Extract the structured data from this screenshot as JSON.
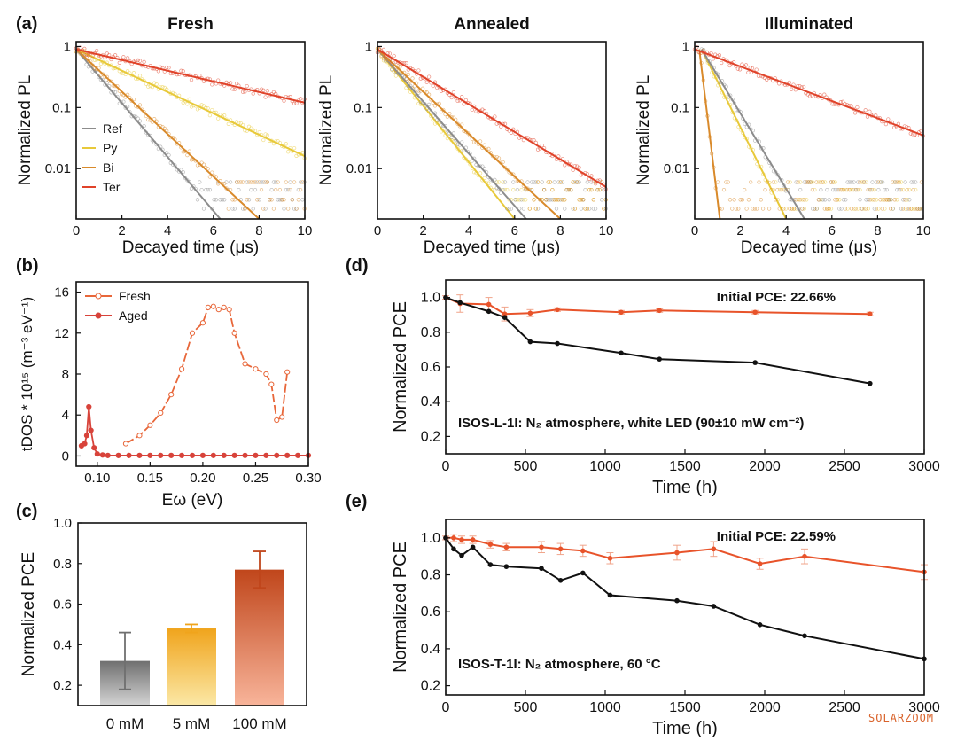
{
  "colors": {
    "Ref": "#8c8c8c",
    "Py": "#e8c93a",
    "Bi": "#d98a2b",
    "Ter": "#e0432a",
    "Fresh": "#e8673a",
    "Aged": "#d8433a",
    "black": "#111111"
  },
  "watermark": "SOLARZOOM",
  "chart_data": [
    {
      "panel": "(a)",
      "title": "Fresh",
      "type": "scatter",
      "log_y": true,
      "xlabel": "Decayed time (μs)",
      "ylabel": "Normalized PL",
      "xlim": [
        0,
        10
      ],
      "ylim": [
        0.0015,
        1.2
      ],
      "xticks": [
        "0",
        "2",
        "4",
        "6",
        "8",
        "10"
      ],
      "yticks": [
        "1",
        "0.1",
        "0.01"
      ],
      "legend": [
        "Ref",
        "Py",
        "Bi",
        "Ter"
      ],
      "series": [
        {
          "name": "Ref",
          "x0": 0,
          "y0": 0.9,
          "x1": 6.3,
          "y1": 0.0015
        },
        {
          "name": "Py",
          "x0": 0,
          "y0": 0.9,
          "x1": 10,
          "y1": 0.016
        },
        {
          "name": "Bi",
          "x0": 0,
          "y0": 0.9,
          "x1": 8,
          "y1": 0.0015
        },
        {
          "name": "Ter",
          "x0": 0,
          "y0": 0.9,
          "x1": 10,
          "y1": 0.12
        }
      ]
    },
    {
      "panel": "",
      "title": "Annealed",
      "type": "scatter",
      "log_y": true,
      "xlabel": "Decayed time (μs)",
      "ylabel": "Normalized PL",
      "xlim": [
        0,
        10
      ],
      "ylim": [
        0.0015,
        1.2
      ],
      "xticks": [
        "0",
        "2",
        "4",
        "6",
        "8",
        "10"
      ],
      "yticks": [
        "1",
        "0.1",
        "0.01"
      ],
      "series": [
        {
          "name": "Ref",
          "x0": 0,
          "y0": 0.9,
          "x1": 6.5,
          "y1": 0.0015
        },
        {
          "name": "Py",
          "x0": 0,
          "y0": 0.9,
          "x1": 6,
          "y1": 0.0015
        },
        {
          "name": "Bi",
          "x0": 0,
          "y0": 0.9,
          "x1": 8,
          "y1": 0.0015
        },
        {
          "name": "Ter",
          "x0": 0,
          "y0": 0.9,
          "x1": 10,
          "y1": 0.005
        }
      ]
    },
    {
      "panel": "",
      "title": "Illuminated",
      "type": "scatter",
      "log_y": true,
      "xlabel": "Decayed time (μs)",
      "ylabel": "Normalized PL",
      "xlim": [
        0,
        10
      ],
      "ylim": [
        0.0015,
        1.2
      ],
      "xticks": [
        "0",
        "2",
        "4",
        "6",
        "8",
        "10"
      ],
      "yticks": [
        "1",
        "0.1",
        "0.01"
      ],
      "series": [
        {
          "name": "Ref",
          "x0": 0.3,
          "y0": 0.9,
          "x1": 4.8,
          "y1": 0.0015
        },
        {
          "name": "Py",
          "x0": 0.3,
          "y0": 0.9,
          "x1": 4,
          "y1": 0.0015
        },
        {
          "name": "Bi",
          "x0": 0.2,
          "y0": 0.9,
          "x1": 1.1,
          "y1": 0.0015
        },
        {
          "name": "Ter",
          "x0": 0,
          "y0": 0.9,
          "x1": 10,
          "y1": 0.035
        }
      ]
    },
    {
      "panel": "(b)",
      "type": "line",
      "xlabel": "Eω (eV)",
      "ylabel": "tDOS * 10¹⁵ (m⁻³ eV⁻¹)",
      "xlim": [
        0.08,
        0.3
      ],
      "ylim": [
        -1,
        17
      ],
      "xticks": [
        "0.10",
        "0.15",
        "0.20",
        "0.25",
        "0.30"
      ],
      "yticks": [
        "0",
        "4",
        "8",
        "12",
        "16"
      ],
      "series": [
        {
          "name": "Fresh",
          "x": [
            0.127,
            0.14,
            0.15,
            0.16,
            0.17,
            0.18,
            0.19,
            0.2,
            0.205,
            0.21,
            0.215,
            0.22,
            0.225,
            0.23,
            0.24,
            0.25,
            0.26,
            0.265,
            0.27,
            0.275,
            0.28
          ],
          "y": [
            1.2,
            2.0,
            3.0,
            4.2,
            6.0,
            8.5,
            12.0,
            13.0,
            14.5,
            14.6,
            14.3,
            14.5,
            14.3,
            12.0,
            9.0,
            8.5,
            8.0,
            7.0,
            3.5,
            3.8,
            8.2
          ]
        },
        {
          "name": "Aged",
          "x": [
            0.085,
            0.088,
            0.09,
            0.092,
            0.094,
            0.097,
            0.1,
            0.105,
            0.11,
            0.12,
            0.13,
            0.14,
            0.15,
            0.16,
            0.17,
            0.18,
            0.19,
            0.2,
            0.21,
            0.22,
            0.23,
            0.24,
            0.25,
            0.26,
            0.27,
            0.28,
            0.29,
            0.3
          ],
          "y": [
            1.0,
            1.2,
            2.0,
            4.8,
            2.5,
            0.8,
            0.2,
            0.1,
            0.05,
            0.05,
            0.05,
            0.05,
            0.05,
            0.05,
            0.05,
            0.05,
            0.05,
            0.05,
            0.05,
            0.05,
            0.05,
            0.05,
            0.05,
            0.05,
            0.05,
            0.05,
            0.05,
            0.05
          ]
        }
      ]
    },
    {
      "panel": "(c)",
      "type": "bar",
      "categories": [
        "0 mM",
        "5 mM",
        "100 mM"
      ],
      "values": [
        0.32,
        0.48,
        0.77
      ],
      "errors": [
        0.14,
        0.02,
        0.09
      ],
      "ylabel": "Normalized PCE",
      "ylim": [
        0.1,
        1.0
      ],
      "yticks": [
        "0.2",
        "0.4",
        "0.6",
        "0.8",
        "1.0"
      ],
      "bar_colors": [
        [
          "#6f6f6f",
          "#d4d4d4"
        ],
        [
          "#f0a41c",
          "#fbe8a6"
        ],
        [
          "#c0461b",
          "#f8b49a"
        ]
      ]
    },
    {
      "panel": "(d)",
      "type": "line",
      "xlabel": "Time (h)",
      "ylabel": "Normalized PCE",
      "xlim": [
        0,
        3000
      ],
      "ylim": [
        0.1,
        1.1
      ],
      "xticks": [
        "0",
        "500",
        "1000",
        "1500",
        "2000",
        "2500",
        "3000"
      ],
      "yticks": [
        "0.2",
        "0.4",
        "0.6",
        "0.8",
        "1.0"
      ],
      "annotation": "Initial PCE: 22.66%",
      "condition": "ISOS-L-1I: N₂ atmosphere, white LED (90±10 mW cm⁻²)",
      "series": [
        {
          "color": "orange",
          "x": [
            0,
            90,
            270,
            370,
            530,
            700,
            1100,
            1340,
            1940,
            2660
          ],
          "y": [
            1.0,
            0.965,
            0.96,
            0.905,
            0.91,
            0.93,
            0.915,
            0.925,
            0.915,
            0.905
          ],
          "err": [
            0.01,
            0.05,
            0.04,
            0.04,
            0.02,
            0.01,
            0.01,
            0.01,
            0.01,
            0.01
          ]
        },
        {
          "color": "black",
          "x": [
            0,
            90,
            270,
            370,
            530,
            700,
            1100,
            1340,
            1940,
            2660
          ],
          "y": [
            1.0,
            0.97,
            0.92,
            0.885,
            0.745,
            0.735,
            0.68,
            0.645,
            0.625,
            0.505
          ]
        }
      ]
    },
    {
      "panel": "(e)",
      "type": "line",
      "xlabel": "Time (h)",
      "ylabel": "Normalized PCE",
      "xlim": [
        0,
        3000
      ],
      "ylim": [
        0.15,
        1.1
      ],
      "xticks": [
        "0",
        "500",
        "1000",
        "1500",
        "2000",
        "2500",
        "3000"
      ],
      "yticks": [
        "0.2",
        "0.4",
        "0.6",
        "0.8",
        "1.0"
      ],
      "annotation": "Initial PCE: 22.59%",
      "condition": "ISOS-T-1I: N₂ atmosphere, 60 °C",
      "series": [
        {
          "color": "orange",
          "x": [
            0,
            50,
            100,
            170,
            280,
            380,
            600,
            720,
            860,
            1030,
            1450,
            1680,
            1970,
            2250,
            3000
          ],
          "y": [
            1.0,
            1.0,
            0.99,
            0.99,
            0.965,
            0.95,
            0.95,
            0.94,
            0.93,
            0.89,
            0.92,
            0.94,
            0.86,
            0.9,
            0.815
          ],
          "err": [
            0.01,
            0.02,
            0.02,
            0.02,
            0.02,
            0.02,
            0.03,
            0.03,
            0.03,
            0.03,
            0.04,
            0.04,
            0.03,
            0.04,
            0.04
          ]
        },
        {
          "color": "black",
          "x": [
            0,
            50,
            100,
            170,
            280,
            380,
            600,
            720,
            860,
            1030,
            1450,
            1680,
            1970,
            2250,
            3000
          ],
          "y": [
            1.0,
            0.94,
            0.905,
            0.95,
            0.855,
            0.845,
            0.835,
            0.77,
            0.81,
            0.69,
            0.66,
            0.63,
            0.53,
            0.47,
            0.345
          ]
        }
      ]
    }
  ]
}
